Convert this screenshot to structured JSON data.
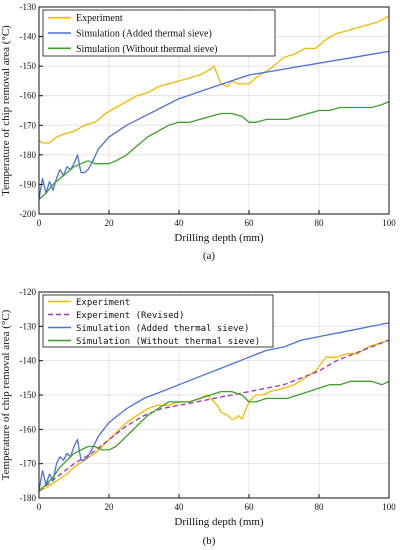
{
  "chart_data": [
    {
      "type": "line",
      "caption": "(a)",
      "xlabel": "Drilling depth (mm)",
      "ylabel": "Temperature of chip removal area (°C)",
      "xlim": [
        0,
        100
      ],
      "ylim": [
        -200,
        -130
      ],
      "xticks": [
        "0",
        "20",
        "40",
        "60",
        "80",
        "100"
      ],
      "yticks": [
        "-130",
        "-140",
        "-150",
        "-160",
        "-170",
        "-180",
        "-190",
        "-200"
      ],
      "grid": true,
      "legend_position": "top-left",
      "series": [
        {
          "name": "Experiment",
          "color": "#f5b800",
          "dash": "",
          "x": [
            0,
            1,
            3,
            5,
            7,
            10,
            13,
            16,
            19,
            22,
            25,
            28,
            31,
            34,
            37,
            40,
            43,
            46,
            49,
            50,
            52,
            54,
            55,
            57,
            60,
            63,
            66,
            70,
            73,
            76,
            79,
            82,
            85,
            88,
            91,
            94,
            97,
            100
          ],
          "y": [
            -175,
            -176,
            -176,
            -174,
            -173,
            -172,
            -170,
            -169,
            -166,
            -164,
            -162,
            -160,
            -159,
            -157,
            -156,
            -155,
            -154,
            -153,
            -151,
            -150,
            -156,
            -157,
            -155,
            -156,
            -156,
            -153,
            -151,
            -147,
            -146,
            -144,
            -144,
            -141,
            -139,
            -138,
            -137,
            -136,
            -135,
            -133
          ]
        },
        {
          "name": "Simulation (Added thermal sieve)",
          "color": "#4a72d8",
          "dash": "",
          "x": [
            0,
            1,
            2,
            3,
            4,
            5,
            6,
            7,
            8,
            9,
            10,
            11,
            12,
            13,
            14,
            15,
            17,
            20,
            25,
            30,
            35,
            40,
            45,
            50,
            55,
            60,
            65,
            70,
            75,
            80,
            85,
            90,
            95,
            100
          ],
          "y": [
            -195,
            -188,
            -193,
            -189,
            -192,
            -188,
            -185,
            -187,
            -184,
            -185,
            -183,
            -180,
            -186,
            -186,
            -185,
            -183,
            -178,
            -174,
            -170,
            -167,
            -164,
            -161,
            -159,
            -157,
            -155,
            -153,
            -152,
            -151,
            -150,
            -149,
            -148,
            -147,
            -146,
            -145
          ]
        },
        {
          "name": "Simulation (Without thermal sieve)",
          "color": "#3ea02a",
          "dash": "",
          "x": [
            0,
            2,
            4,
            6,
            8,
            10,
            12,
            14,
            16,
            18,
            20,
            22,
            25,
            28,
            31,
            34,
            37,
            40,
            43,
            46,
            49,
            52,
            55,
            58,
            60,
            62,
            65,
            68,
            71,
            74,
            77,
            80,
            83,
            86,
            89,
            92,
            95,
            98,
            100
          ],
          "y": [
            -195,
            -193,
            -190,
            -188,
            -186,
            -184,
            -183,
            -182,
            -183,
            -183,
            -183,
            -182,
            -180,
            -177,
            -174,
            -172,
            -170,
            -169,
            -169,
            -168,
            -167,
            -166,
            -166,
            -167,
            -169,
            -169,
            -168,
            -168,
            -168,
            -167,
            -166,
            -165,
            -165,
            -164,
            -164,
            -164,
            -164,
            -163,
            -162
          ]
        }
      ]
    },
    {
      "type": "line",
      "caption": "(b)",
      "xlabel": "Drilling depth (mm)",
      "ylabel": "Temperature of chip removal area (°C)",
      "xlim": [
        0,
        100
      ],
      "ylim": [
        -180,
        -120
      ],
      "xticks": [
        "0",
        "20",
        "40",
        "60",
        "80",
        "100"
      ],
      "yticks": [
        "-120",
        "-130",
        "-140",
        "-150",
        "-160",
        "-170",
        "-180"
      ],
      "grid": true,
      "legend_position": "top-left",
      "series": [
        {
          "name": "Experiment",
          "color": "#f5b800",
          "dash": "",
          "x": [
            0,
            2,
            5,
            8,
            10,
            13,
            16,
            19,
            22,
            25,
            28,
            31,
            34,
            37,
            40,
            43,
            46,
            48,
            49,
            50,
            51,
            52,
            54,
            55,
            56,
            57,
            58,
            60,
            62,
            64,
            66,
            70,
            73,
            76,
            79,
            82,
            85,
            88,
            91,
            94,
            97,
            100
          ],
          "y": [
            -178,
            -177,
            -175,
            -173,
            -171,
            -169,
            -167,
            -164,
            -161,
            -158,
            -156,
            -154,
            -153,
            -153,
            -152,
            -152,
            -151,
            -150,
            -151,
            -152,
            -153,
            -155,
            -156,
            -157,
            -157,
            -156,
            -157,
            -152,
            -150,
            -150,
            -149,
            -148,
            -147,
            -145,
            -143,
            -139,
            -139,
            -138,
            -138,
            -136,
            -135,
            -134
          ]
        },
        {
          "name": "Experiment (Revised)",
          "color": "#9b35b5",
          "dash": "5,3",
          "x": [
            0,
            5,
            10,
            15,
            20,
            25,
            30,
            35,
            40,
            45,
            50,
            55,
            60,
            65,
            70,
            75,
            80,
            85,
            90,
            95,
            100
          ],
          "y": [
            -178,
            -174,
            -170,
            -167,
            -163,
            -159,
            -156,
            -154,
            -153,
            -152,
            -151,
            -150,
            -149,
            -148,
            -147,
            -145,
            -143,
            -140,
            -138,
            -136,
            -134
          ]
        },
        {
          "name": "Simulation (Added thermal sieve)",
          "color": "#4a72d8",
          "dash": "",
          "x": [
            0,
            1,
            2,
            3,
            4,
            5,
            6,
            7,
            8,
            9,
            10,
            11,
            12,
            13,
            14,
            15,
            17,
            20,
            25,
            30,
            35,
            40,
            45,
            50,
            55,
            60,
            65,
            70,
            75,
            80,
            85,
            90,
            95,
            100
          ],
          "y": [
            -178,
            -172,
            -176,
            -173,
            -175,
            -170,
            -168,
            -169,
            -167,
            -168,
            -165,
            -163,
            -169,
            -169,
            -168,
            -166,
            -162,
            -158,
            -154,
            -151,
            -149,
            -147,
            -145,
            -143,
            -141,
            -139,
            -137,
            -136,
            -134,
            -133,
            -132,
            -131,
            -130,
            -129
          ]
        },
        {
          "name": "Simulation (Without thermal sieve)",
          "color": "#3ea02a",
          "dash": "",
          "x": [
            0,
            2,
            4,
            6,
            8,
            10,
            12,
            14,
            16,
            18,
            20,
            22,
            25,
            28,
            31,
            34,
            37,
            40,
            43,
            46,
            49,
            52,
            55,
            58,
            60,
            62,
            65,
            68,
            71,
            74,
            77,
            80,
            83,
            86,
            89,
            92,
            95,
            98,
            100
          ],
          "y": [
            -178,
            -176,
            -174,
            -171,
            -169,
            -167,
            -166,
            -165,
            -165,
            -166,
            -166,
            -165,
            -162,
            -159,
            -156,
            -154,
            -152,
            -152,
            -152,
            -151,
            -150,
            -149,
            -149,
            -150,
            -152,
            -152,
            -151,
            -151,
            -151,
            -150,
            -149,
            -148,
            -147,
            -147,
            -146,
            -146,
            -146,
            -147,
            -146
          ]
        }
      ]
    }
  ]
}
